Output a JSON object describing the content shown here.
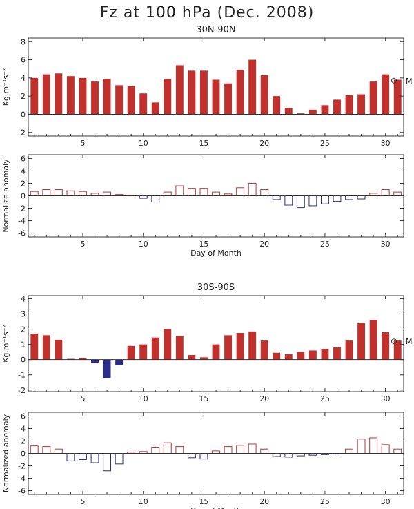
{
  "title": "Fz at 100 hPa (Dec. 2008)",
  "colors": {
    "positive": "#c0302c",
    "negative": "#2c2c8c",
    "axis": "#333333"
  },
  "chart_data": [
    {
      "id": "nh-fz",
      "type": "bar",
      "style": "filled",
      "title": "30N-90N",
      "xlabel": "",
      "ylabel": "Kg.m⁻¹s⁻²",
      "xlim": [
        0.5,
        31.5
      ],
      "ylim": [
        -2.4,
        8.4
      ],
      "yticks": [
        -2,
        0,
        2,
        4,
        6,
        8
      ],
      "xticks": [
        5,
        10,
        15,
        20,
        25,
        30
      ],
      "marker_label": "M",
      "marker_value": 3.7,
      "x": [
        1,
        2,
        3,
        4,
        5,
        6,
        7,
        8,
        9,
        10,
        11,
        12,
        13,
        14,
        15,
        16,
        17,
        18,
        19,
        20,
        21,
        22,
        23,
        24,
        25,
        26,
        27,
        28,
        29,
        30,
        31
      ],
      "values": [
        4.0,
        4.4,
        4.5,
        4.2,
        4.0,
        3.6,
        3.9,
        3.2,
        3.1,
        2.3,
        1.3,
        3.9,
        5.4,
        4.8,
        4.8,
        3.8,
        3.4,
        4.9,
        6.0,
        4.3,
        2.0,
        0.7,
        0.1,
        0.5,
        1.0,
        1.6,
        2.1,
        2.2,
        3.6,
        4.4,
        3.8
      ]
    },
    {
      "id": "nh-anom",
      "type": "bar",
      "style": "outline",
      "title": "",
      "xlabel": "Day of Month",
      "ylabel": "Normalize anomaly",
      "xlim": [
        0.5,
        31.5
      ],
      "ylim": [
        -6.6,
        6.6
      ],
      "yticks": [
        -6,
        -4,
        -2,
        0,
        2,
        4,
        6
      ],
      "xticks": [
        5,
        10,
        15,
        20,
        25,
        30
      ],
      "x": [
        1,
        2,
        3,
        4,
        5,
        6,
        7,
        8,
        9,
        10,
        11,
        12,
        13,
        14,
        15,
        16,
        17,
        18,
        19,
        20,
        21,
        22,
        23,
        24,
        25,
        26,
        27,
        28,
        29,
        30,
        31
      ],
      "values": [
        0.7,
        1.0,
        1.0,
        0.8,
        0.7,
        0.4,
        0.6,
        0.2,
        0.1,
        -0.4,
        -1.0,
        0.6,
        1.6,
        1.2,
        1.2,
        0.6,
        0.3,
        1.3,
        2.0,
        1.0,
        -0.6,
        -1.5,
        -1.9,
        -1.6,
        -1.3,
        -0.9,
        -0.6,
        -0.5,
        0.4,
        1.0,
        0.6
      ]
    },
    {
      "id": "sh-fz",
      "type": "bar",
      "style": "filled",
      "title": "30S-90S",
      "xlabel": "",
      "ylabel": "Kg.m⁻¹s⁻²",
      "xlim": [
        0.5,
        31.5
      ],
      "ylim": [
        -2.1,
        4.2
      ],
      "yticks": [
        -2,
        -1,
        0,
        1,
        2,
        3,
        4
      ],
      "xticks": [
        5,
        10,
        15,
        20,
        25,
        30
      ],
      "marker_label": "M",
      "marker_value": 1.2,
      "x": [
        1,
        2,
        3,
        4,
        5,
        6,
        7,
        8,
        9,
        10,
        11,
        12,
        13,
        14,
        15,
        16,
        17,
        18,
        19,
        20,
        21,
        22,
        23,
        24,
        25,
        26,
        27,
        28,
        29,
        30,
        31
      ],
      "values": [
        1.7,
        1.6,
        1.3,
        0.05,
        0.1,
        -0.2,
        -1.2,
        -0.35,
        0.9,
        1.0,
        1.45,
        2.0,
        1.55,
        0.3,
        0.15,
        1.0,
        1.6,
        1.75,
        1.85,
        1.25,
        0.45,
        0.35,
        0.5,
        0.6,
        0.7,
        0.8,
        1.25,
        2.4,
        2.6,
        1.8,
        1.25
      ]
    },
    {
      "id": "sh-anom",
      "type": "bar",
      "style": "outline",
      "title": "",
      "xlabel": "Day of Month",
      "ylabel": "Normalized anomaly",
      "xlim": [
        0.5,
        31.5
      ],
      "ylim": [
        -6.6,
        6.6
      ],
      "yticks": [
        -6,
        -4,
        -2,
        0,
        2,
        4,
        6
      ],
      "xticks": [
        5,
        10,
        15,
        20,
        25,
        30
      ],
      "x": [
        1,
        2,
        3,
        4,
        5,
        6,
        7,
        8,
        9,
        10,
        11,
        12,
        13,
        14,
        15,
        16,
        17,
        18,
        19,
        20,
        21,
        22,
        23,
        24,
        25,
        26,
        27,
        28,
        29,
        30,
        31
      ],
      "values": [
        1.2,
        1.1,
        0.7,
        -1.2,
        -1.0,
        -1.5,
        -2.8,
        -1.7,
        0.2,
        0.3,
        1.0,
        1.7,
        1.1,
        -0.7,
        -0.9,
        0.4,
        1.1,
        1.3,
        1.5,
        0.7,
        -0.5,
        -0.6,
        -0.4,
        -0.3,
        -0.2,
        -0.1,
        0.7,
        2.3,
        2.5,
        1.4,
        0.7
      ]
    }
  ]
}
